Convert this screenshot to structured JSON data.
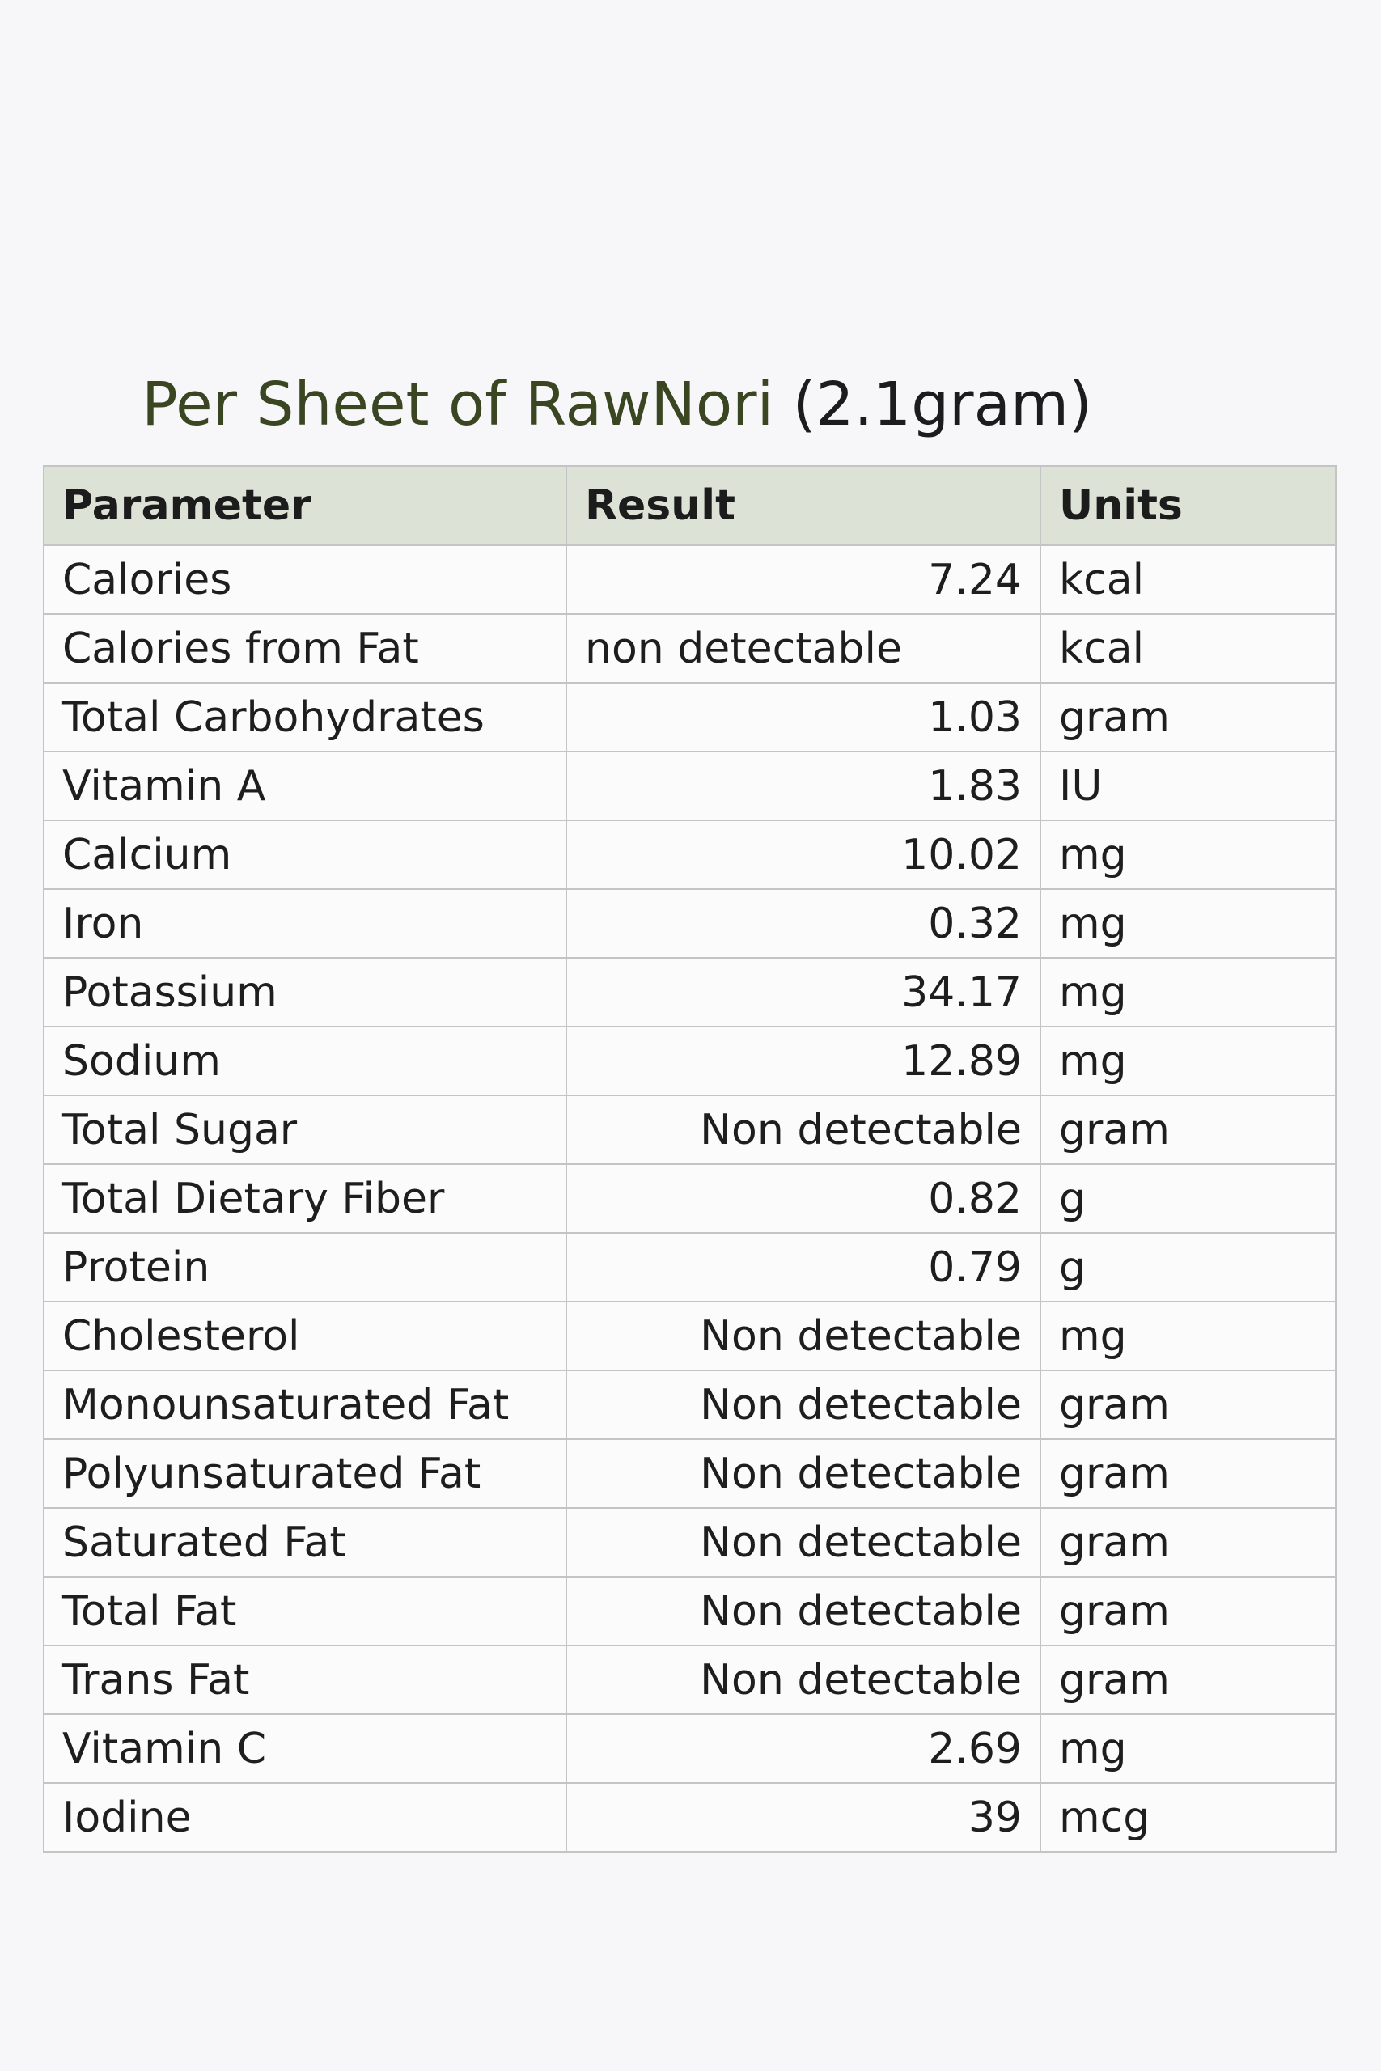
{
  "title": {
    "main": "Per Sheet of RawNori",
    "sub": "(2.1gram)"
  },
  "table": {
    "headers": [
      "Parameter",
      "Result",
      "Units"
    ],
    "rows": [
      {
        "parameter": "Calories",
        "result": "7.24",
        "units": "kcal"
      },
      {
        "parameter": "Calories from Fat",
        "result": "non detectable",
        "units": "kcal"
      },
      {
        "parameter": "Total Carbohydrates",
        "result": "1.03",
        "units": "gram"
      },
      {
        "parameter": "Vitamin A",
        "result": "1.83",
        "units": "IU"
      },
      {
        "parameter": "Calcium",
        "result": "10.02",
        "units": "mg"
      },
      {
        "parameter": "Iron",
        "result": "0.32",
        "units": "mg"
      },
      {
        "parameter": "Potassium",
        "result": "34.17",
        "units": "mg"
      },
      {
        "parameter": "Sodium",
        "result": "12.89",
        "units": "mg"
      },
      {
        "parameter": "Total Sugar",
        "result": "Non detectable",
        "units": "gram"
      },
      {
        "parameter": "Total Dietary Fiber",
        "result": "0.82",
        "units": "g"
      },
      {
        "parameter": "Protein",
        "result": "0.79",
        "units": "g"
      },
      {
        "parameter": "Cholesterol",
        "result": "Non detectable",
        "units": "mg"
      },
      {
        "parameter": "Monounsaturated Fat",
        "result": "Non detectable",
        "units": "gram"
      },
      {
        "parameter": "Polyunsaturated Fat",
        "result": "Non detectable",
        "units": "gram"
      },
      {
        "parameter": "Saturated Fat",
        "result": "Non detectable",
        "units": "gram"
      },
      {
        "parameter": "Total Fat",
        "result": "Non detectable",
        "units": "gram"
      },
      {
        "parameter": "Trans Fat",
        "result": "Non detectable",
        "units": "gram"
      },
      {
        "parameter": "Vitamin C",
        "result": "2.69",
        "units": "mg"
      },
      {
        "parameter": "Iodine",
        "result": "39",
        "units": "mcg"
      }
    ]
  },
  "colors": {
    "background": "#f7f6f9",
    "title_main": "#3a4521",
    "header_fill": "#dde2d6",
    "border": "#c4c4c4"
  }
}
